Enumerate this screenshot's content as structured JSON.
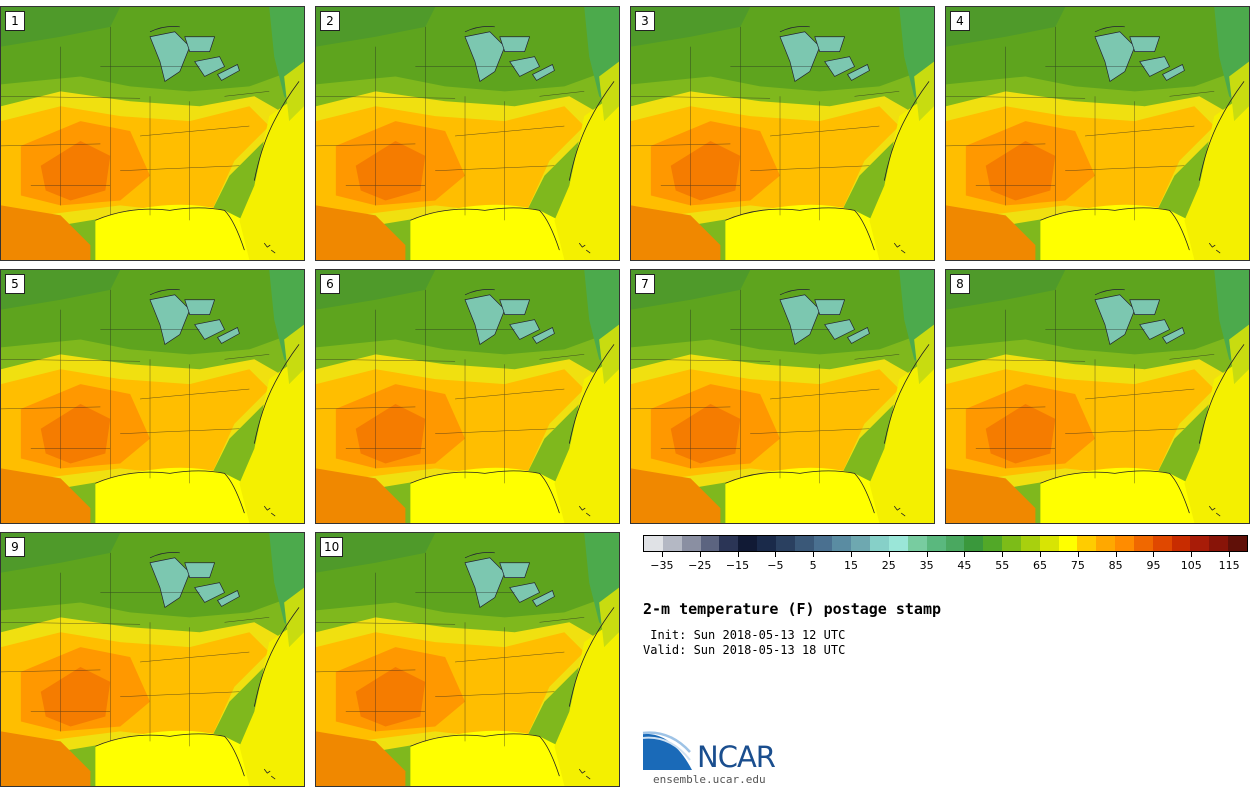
{
  "panels": [
    {
      "label": "1"
    },
    {
      "label": "2"
    },
    {
      "label": "3"
    },
    {
      "label": "4"
    },
    {
      "label": "5"
    },
    {
      "label": "6"
    },
    {
      "label": "7"
    },
    {
      "label": "8"
    },
    {
      "label": "9"
    },
    {
      "label": "10"
    }
  ],
  "colorbar": {
    "colors": [
      "#e0e2e6",
      "#b4b8c4",
      "#8a8fa2",
      "#5c6480",
      "#2b3556",
      "#111a35",
      "#1a2a4a",
      "#2a4060",
      "#3a5878",
      "#4a7090",
      "#5a8ca2",
      "#6ea8b0",
      "#86d0c8",
      "#9ae6d8",
      "#78cca0",
      "#5ab87e",
      "#4aa860",
      "#3a983c",
      "#52a828",
      "#7cbc18",
      "#a8d00e",
      "#d8e404",
      "#ffff00",
      "#ffcc00",
      "#ffa800",
      "#ff8c00",
      "#f06800",
      "#e04800",
      "#c82c00",
      "#a81c08",
      "#881408",
      "#601008"
    ],
    "tick_labels": [
      "−35",
      "−25",
      "−15",
      "−5",
      "5",
      "15",
      "25",
      "35",
      "45",
      "55",
      "65",
      "75",
      "85",
      "95",
      "105",
      "115"
    ],
    "tick_values": [
      -35,
      -25,
      -15,
      -5,
      5,
      15,
      25,
      35,
      45,
      55,
      65,
      75,
      85,
      95,
      105,
      115
    ],
    "min": -40,
    "max": 120
  },
  "title": "2-m temperature (F) postage stamp",
  "init": " Init: Sun 2018-05-13 12 UTC",
  "valid": "Valid: Sun 2018-05-13 18 UTC",
  "logo": {
    "name": "NCAR",
    "url": "ensemble.ucar.edu"
  }
}
